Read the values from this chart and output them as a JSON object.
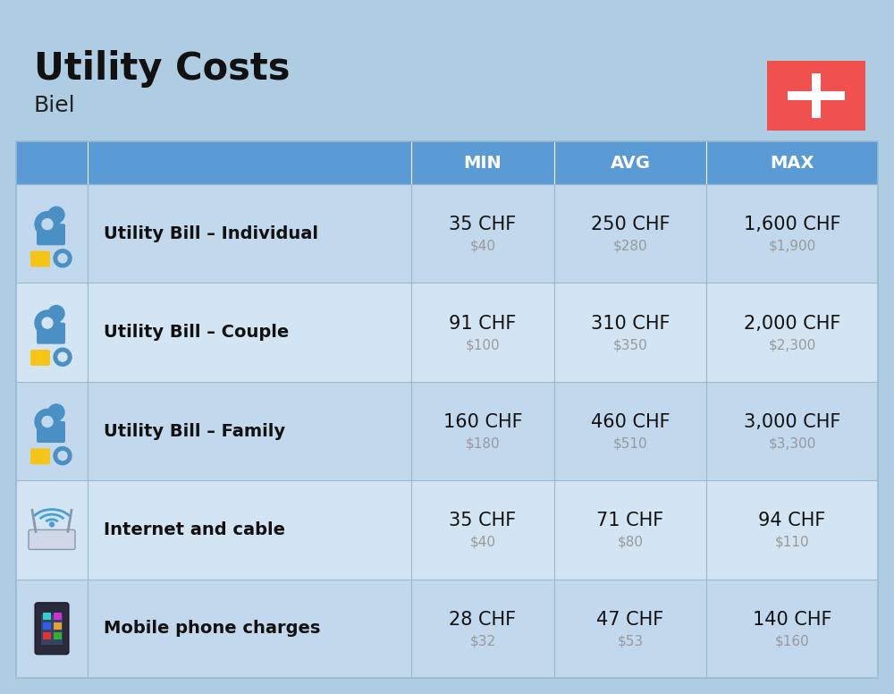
{
  "title": "Utility Costs",
  "subtitle": "Biel",
  "background_color": "#aecde3",
  "header_bg_color": "#5b9bd5",
  "header_text_color": "#ffffff",
  "row_colors": [
    "#c2d9ed",
    "#d3e5f2"
  ],
  "cell_border_color": "#9ab8d0",
  "columns": [
    "MIN",
    "AVG",
    "MAX"
  ],
  "rows": [
    {
      "label": "Utility Bill – Individual",
      "icon_emoji": "⚙️",
      "min_chf": "35 CHF",
      "min_usd": "$40",
      "avg_chf": "250 CHF",
      "avg_usd": "$280",
      "max_chf": "1,600 CHF",
      "max_usd": "$1,900"
    },
    {
      "label": "Utility Bill – Couple",
      "icon_emoji": "⚙️",
      "min_chf": "91 CHF",
      "min_usd": "$100",
      "avg_chf": "310 CHF",
      "avg_usd": "$350",
      "max_chf": "2,000 CHF",
      "max_usd": "$2,300"
    },
    {
      "label": "Utility Bill – Family",
      "icon_emoji": "⚙️",
      "min_chf": "160 CHF",
      "min_usd": "$180",
      "avg_chf": "460 CHF",
      "avg_usd": "$510",
      "max_chf": "3,000 CHF",
      "max_usd": "$3,300"
    },
    {
      "label": "Internet and cable",
      "icon_emoji": "📡",
      "min_chf": "35 CHF",
      "min_usd": "$40",
      "avg_chf": "71 CHF",
      "avg_usd": "$80",
      "max_chf": "94 CHF",
      "max_usd": "$110"
    },
    {
      "label": "Mobile phone charges",
      "icon_emoji": "📱",
      "min_chf": "28 CHF",
      "min_usd": "$32",
      "avg_chf": "47 CHF",
      "avg_usd": "$53",
      "max_chf": "140 CHF",
      "max_usd": "$160"
    }
  ],
  "title_fontsize": 30,
  "subtitle_fontsize": 18,
  "header_fontsize": 14,
  "label_fontsize": 14,
  "value_fontsize": 15,
  "subvalue_fontsize": 11,
  "flag_red": "#f0514e",
  "flag_white": "#ffffff",
  "title_color": "#111111",
  "subtitle_color": "#222222",
  "label_color": "#111111",
  "value_color": "#111111",
  "subvalue_color": "#999999"
}
